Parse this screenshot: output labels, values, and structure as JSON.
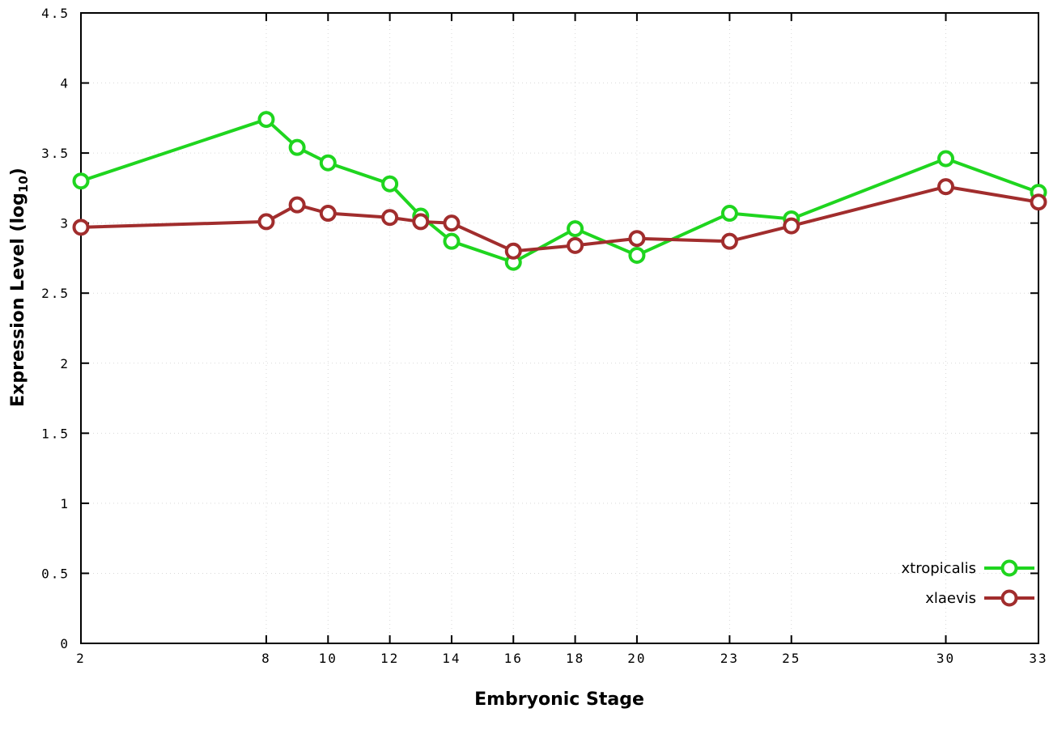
{
  "chart_data": {
    "type": "line",
    "title": "",
    "xlabel": "Embryonic Stage",
    "ylabel": "Expression Level (log10)",
    "ylabel_prefix": "Expression Level (log",
    "ylabel_sub": "10",
    "ylabel_suffix": ")",
    "xlim": [
      2,
      33
    ],
    "ylim": [
      0,
      4.5
    ],
    "grid": true,
    "legend_position": "bottom-right",
    "marker": "open-circle",
    "x": [
      2,
      8,
      9,
      10,
      12,
      13,
      14,
      16,
      18,
      20,
      23,
      25,
      30,
      33
    ],
    "series": [
      {
        "name": "xtropicalis",
        "color": "#1fd51f",
        "values": [
          3.3,
          3.74,
          3.54,
          3.43,
          3.28,
          3.05,
          2.87,
          2.72,
          2.96,
          2.77,
          3.07,
          3.03,
          3.46,
          3.22
        ]
      },
      {
        "name": "xlaevis",
        "color": "#a12d2d",
        "values": [
          2.97,
          3.01,
          3.13,
          3.07,
          3.04,
          3.01,
          3.0,
          2.8,
          2.84,
          2.89,
          2.87,
          2.98,
          3.26,
          3.15
        ]
      }
    ],
    "xtick_labels": [
      "2",
      "8",
      "10",
      "12",
      "14",
      "16",
      "18",
      "20",
      "23",
      "25",
      "30",
      "33"
    ],
    "ytick_labels": [
      "0",
      "0.5",
      "1",
      "1.5",
      "2",
      "2.5",
      "3",
      "3.5",
      "4",
      "4.5"
    ]
  }
}
